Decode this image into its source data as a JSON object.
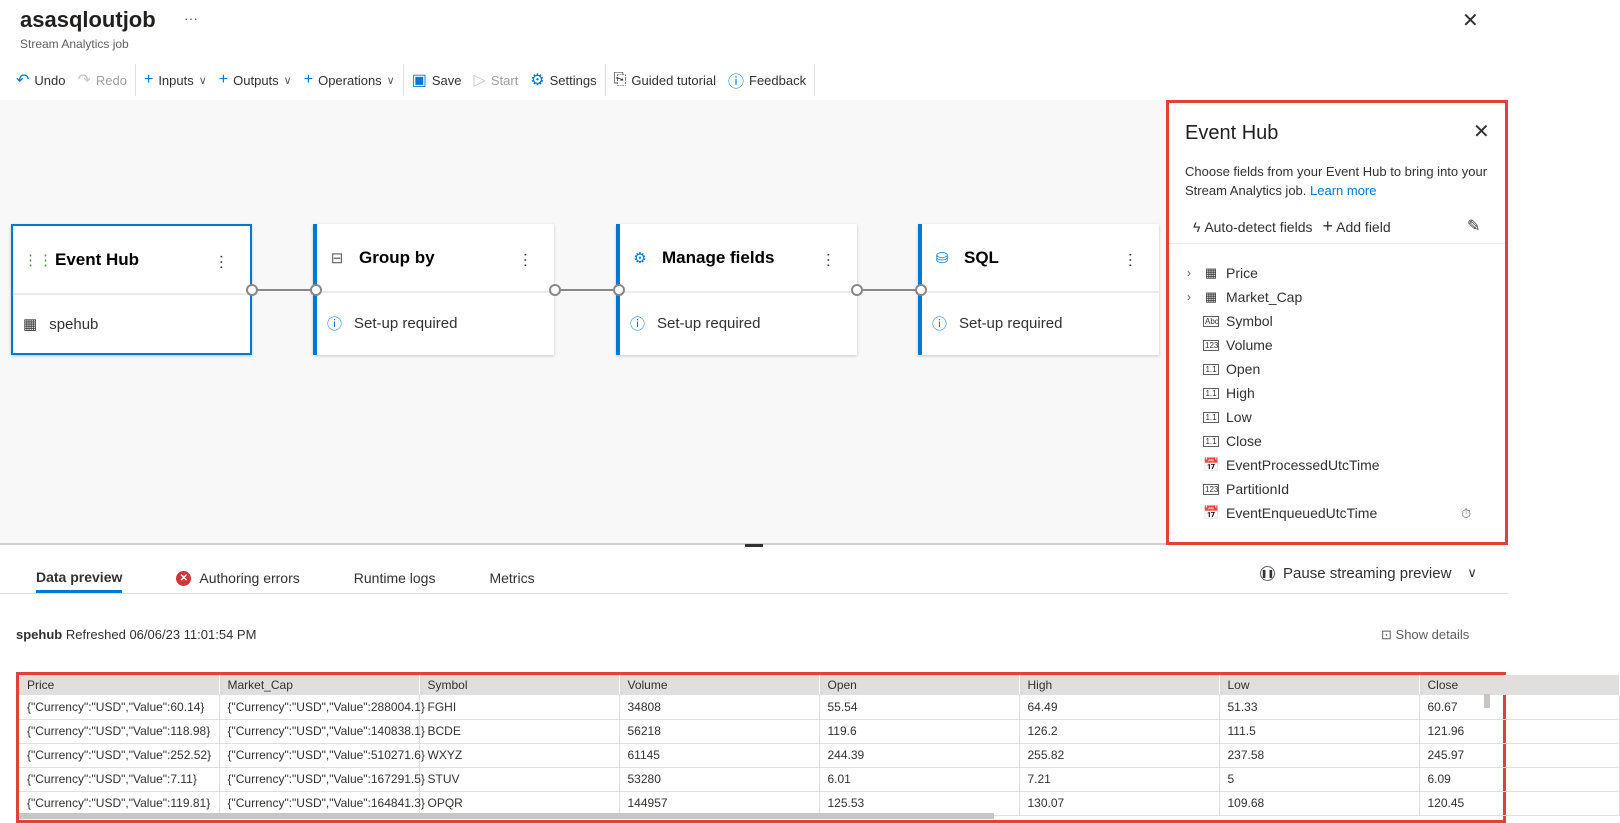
{
  "header": {
    "title": "asasqloutjob",
    "subtitle": "Stream Analytics job",
    "more": "···",
    "close": "✕"
  },
  "toolbar": {
    "undo": "Undo",
    "redo": "Redo",
    "inputs": "Inputs",
    "outputs": "Outputs",
    "operations": "Operations",
    "save": "Save",
    "start": "Start",
    "settings": "Settings",
    "guided": "Guided tutorial",
    "feedback": "Feedback"
  },
  "nodes": [
    {
      "name": "Event Hub",
      "detail": "spehub",
      "icon": "event-hub-icon",
      "selected": true
    },
    {
      "name": "Group by",
      "detail": "Set-up required",
      "icon": "group-by-icon"
    },
    {
      "name": "Manage fields",
      "detail": "Set-up required",
      "icon": "manage-fields-icon"
    },
    {
      "name": "SQL",
      "detail": "Set-up required",
      "icon": "sql-icon"
    }
  ],
  "panel": {
    "title": "Event Hub",
    "description": "Choose fields from your Event Hub to bring into your Stream Analytics job.",
    "learn_more": "Learn more",
    "auto_detect": "Auto-detect fields",
    "add_field": "Add field",
    "fields": [
      {
        "name": "Price",
        "type": "record",
        "expandable": true
      },
      {
        "name": "Market_Cap",
        "type": "record",
        "expandable": true
      },
      {
        "name": "Symbol",
        "type": "Abc"
      },
      {
        "name": "Volume",
        "type": "123"
      },
      {
        "name": "Open",
        "type": "1.1"
      },
      {
        "name": "High",
        "type": "1.1"
      },
      {
        "name": "Low",
        "type": "1.1"
      },
      {
        "name": "Close",
        "type": "1.1"
      },
      {
        "name": "EventProcessedUtcTime",
        "type": "datetime"
      },
      {
        "name": "PartitionId",
        "type": "123"
      },
      {
        "name": "EventEnqueuedUtcTime",
        "type": "datetime"
      }
    ]
  },
  "bottom": {
    "tabs": [
      "Data preview",
      "Authoring errors",
      "Runtime logs",
      "Metrics"
    ],
    "pause": "Pause streaming preview",
    "source": "spehub",
    "refreshed": "Refreshed 06/06/23 11:01:54 PM",
    "show_details": "Show details"
  },
  "table": {
    "columns": [
      "Price",
      "Market_Cap",
      "Symbol",
      "Volume",
      "Open",
      "High",
      "Low",
      "Close"
    ],
    "rows": [
      [
        "{\"Currency\":\"USD\",\"Value\":60.14}",
        "{\"Currency\":\"USD\",\"Value\":288004.1}",
        "FGHI",
        "34808",
        "55.54",
        "64.49",
        "51.33",
        "60.67"
      ],
      [
        "{\"Currency\":\"USD\",\"Value\":118.98}",
        "{\"Currency\":\"USD\",\"Value\":140838.1}",
        "BCDE",
        "56218",
        "119.6",
        "126.2",
        "111.5",
        "121.96"
      ],
      [
        "{\"Currency\":\"USD\",\"Value\":252.52}",
        "{\"Currency\":\"USD\",\"Value\":510271.6}",
        "WXYZ",
        "61145",
        "244.39",
        "255.82",
        "237.58",
        "245.97"
      ],
      [
        "{\"Currency\":\"USD\",\"Value\":7.11}",
        "{\"Currency\":\"USD\",\"Value\":167291.5}",
        "STUV",
        "53280",
        "6.01",
        "7.21",
        "5",
        "6.09"
      ],
      [
        "{\"Currency\":\"USD\",\"Value\":119.81}",
        "{\"Currency\":\"USD\",\"Value\":164841.3}",
        "OPQR",
        "144957",
        "125.53",
        "130.07",
        "109.68",
        "120.45"
      ]
    ]
  }
}
